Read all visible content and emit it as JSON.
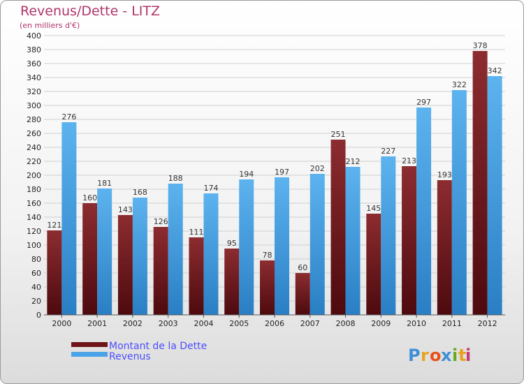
{
  "header": {
    "title": "Revenus/Dette - LITZ",
    "subtitle": "(en milliers d'€)"
  },
  "brand": {
    "letters": [
      "P",
      "r",
      "o",
      "x",
      "i",
      "t",
      "i"
    ],
    "colors": [
      "#3f8fd6",
      "#e8a21a",
      "#e8501a",
      "#3f8fd6",
      "#66aa22",
      "#e8a21a",
      "#c43a7a"
    ]
  },
  "chart_data": {
    "type": "bar",
    "title": "Revenus/Dette - LITZ",
    "subtitle": "(en milliers d'€)",
    "categories": [
      "2000",
      "2001",
      "2002",
      "2003",
      "2004",
      "2005",
      "2006",
      "2007",
      "2008",
      "2009",
      "2010",
      "2011",
      "2012"
    ],
    "series": [
      {
        "name": "Montant de la Dette",
        "color": "#7d1f24",
        "values": [
          121,
          160,
          143,
          126,
          111,
          95,
          78,
          60,
          251,
          145,
          213,
          193,
          378
        ]
      },
      {
        "name": "Revenus",
        "color": "#4aa3e6",
        "values": [
          276,
          181,
          168,
          188,
          174,
          194,
          197,
          202,
          212,
          227,
          297,
          322,
          342
        ]
      }
    ],
    "ylim": [
      0,
      400
    ],
    "ytick_step": 20,
    "grid": true,
    "legend": "bottom-left"
  }
}
